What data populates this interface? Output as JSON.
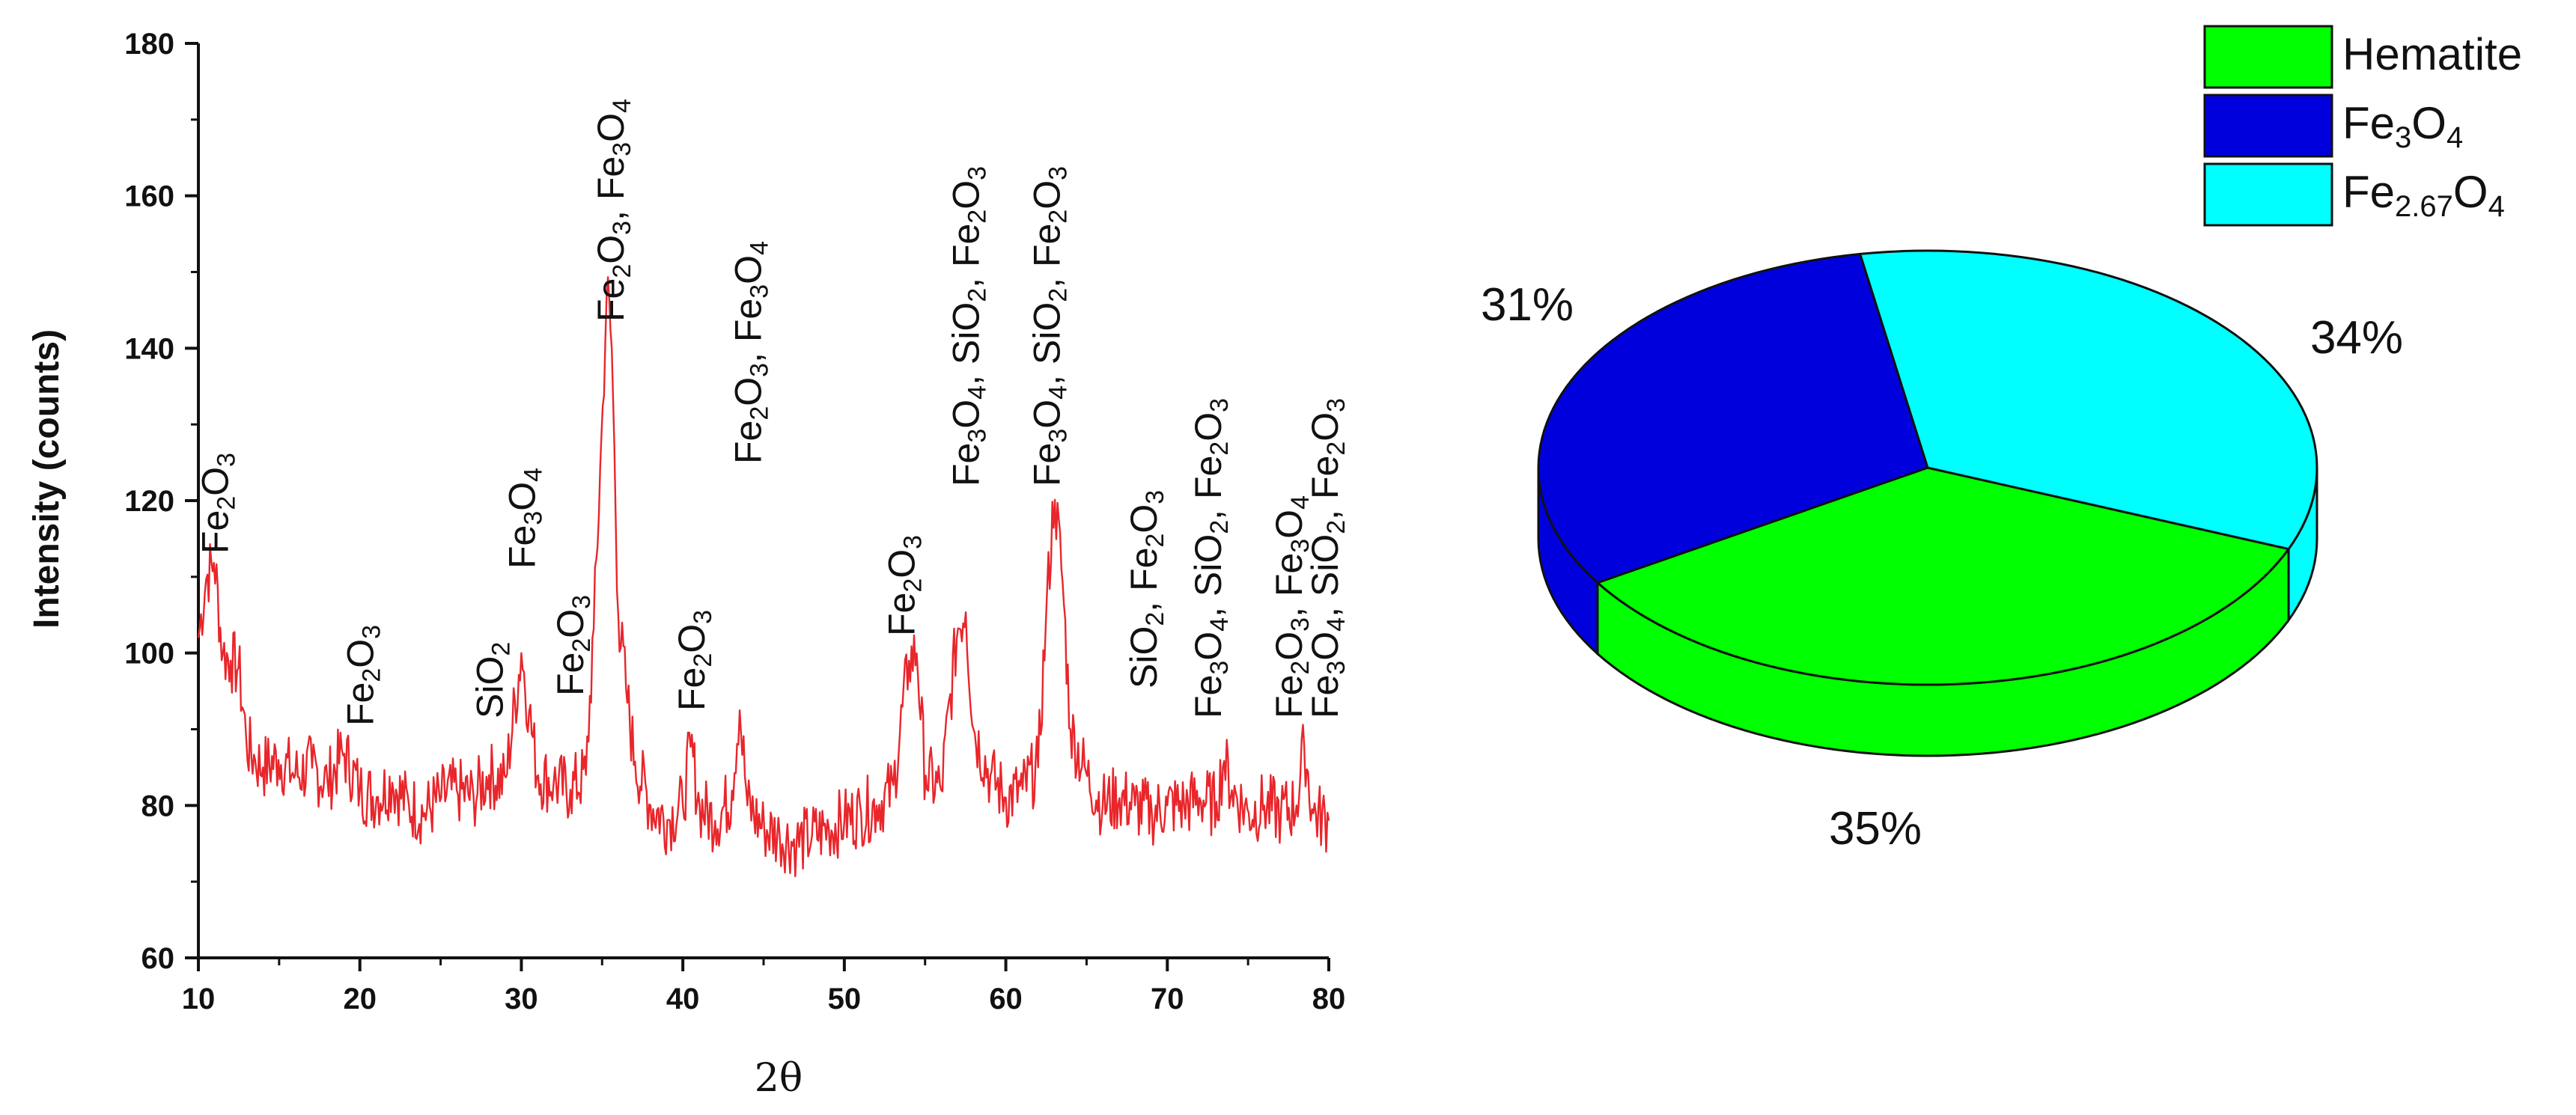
{
  "chart_data": [
    {
      "type": "line",
      "xlabel": "2θ",
      "ylabel": "Intensity (counts)",
      "xlim": [
        10,
        80
      ],
      "ylim": [
        60,
        180
      ],
      "x_ticks": [
        "10",
        "20",
        "30",
        "40",
        "50",
        "60",
        "70",
        "80"
      ],
      "y_ticks": [
        "60",
        "80",
        "100",
        "120",
        "140",
        "160",
        "180"
      ],
      "series_color": "#e8262b",
      "series": [
        {
          "x": [
            10,
            10.5,
            11,
            11.5,
            12,
            12.5,
            13,
            13.5,
            14,
            15,
            16,
            17,
            18,
            19,
            20,
            21,
            22,
            23,
            24,
            25,
            26,
            27,
            28,
            29,
            30,
            30.5,
            31,
            32,
            33,
            34,
            34.5,
            35,
            35.3,
            35.6,
            36,
            36.5,
            37,
            38,
            39,
            40,
            40.5,
            41,
            42,
            43,
            43.5,
            44,
            45,
            46,
            47,
            48,
            49,
            50,
            51,
            52,
            53,
            54,
            54.5,
            55,
            56,
            57,
            57.5,
            58,
            59,
            60,
            61,
            62,
            62.5,
            63,
            63.5,
            64,
            65,
            66,
            67,
            68,
            69,
            70,
            71,
            72,
            73,
            73.5,
            74,
            75,
            76,
            77,
            78,
            78.5,
            79,
            80
          ],
          "y": [
            102,
            110,
            112,
            100,
            99,
            98,
            88,
            86,
            85,
            86,
            84,
            85,
            83,
            87,
            82,
            81,
            83,
            80,
            79,
            81,
            82,
            81,
            84,
            83,
            100,
            92,
            84,
            83,
            82,
            84,
            104,
            130,
            148,
            140,
            105,
            95,
            86,
            80,
            78,
            80,
            88,
            80,
            78,
            81,
            93,
            80,
            77,
            76,
            75,
            76,
            77,
            78,
            79,
            80,
            82,
            99,
            100,
            84,
            82,
            103,
            106,
            90,
            84,
            81,
            82,
            85,
            105,
            121,
            110,
            90,
            84,
            80,
            81,
            80,
            79,
            80,
            80,
            81,
            80,
            86,
            82,
            79,
            80,
            79,
            80,
            88,
            79,
            78
          ]
        }
      ],
      "annotations": [
        {
          "x": 11,
          "lines": [
            [
              "Fe",
              "2",
              "O",
              "3"
            ]
          ]
        },
        {
          "x": 20,
          "lines": [
            [
              "Fe",
              "2",
              "O",
              "3"
            ]
          ]
        },
        {
          "x": 28,
          "lines": [
            [
              "SiO",
              "2"
            ]
          ]
        },
        {
          "x": 30,
          "lines": [
            [
              "Fe",
              "3",
              "O",
              "4"
            ]
          ]
        },
        {
          "x": 33,
          "lines": [
            [
              "Fe",
              "2",
              "O",
              "3"
            ]
          ]
        },
        {
          "x": 35.5,
          "lines": [
            [
              "Fe",
              "2",
              "O",
              "3",
              ", Fe",
              "3",
              "O",
              "4"
            ]
          ]
        },
        {
          "x": 40.5,
          "lines": [
            [
              "Fe",
              "2",
              "O",
              "3"
            ]
          ]
        },
        {
          "x": 44,
          "lines": [
            [
              "Fe",
              "2",
              "O",
              "3",
              ", Fe",
              "3",
              "O",
              "4"
            ]
          ]
        },
        {
          "x": 53.5,
          "lines": [
            [
              "Fe",
              "2",
              "O",
              "3"
            ]
          ]
        },
        {
          "x": 57.5,
          "lines": [
            [
              "Fe",
              "3",
              "O",
              "4",
              ", SiO",
              "2",
              ", Fe",
              "2",
              "O",
              "3"
            ]
          ]
        },
        {
          "x": 62.5,
          "lines": [
            [
              "Fe",
              "3",
              "O",
              "4",
              ", SiO",
              "2",
              ", Fe",
              "2",
              "O",
              "3"
            ]
          ]
        },
        {
          "x": 68.5,
          "lines": [
            [
              "SiO",
              "2",
              ", Fe",
              "2",
              "O",
              "3"
            ]
          ]
        },
        {
          "x": 72.5,
          "lines": [
            [
              "Fe",
              "3",
              "O",
              "4",
              ", SiO",
              "2",
              ", Fe",
              "2",
              "O",
              "3"
            ]
          ]
        },
        {
          "x": 77.5,
          "lines": [
            [
              "Fe",
              "2",
              "O",
              "3",
              ", Fe",
              "3",
              "O",
              "4"
            ]
          ]
        },
        {
          "x": 80,
          "lines": [
            [
              "Fe",
              "3",
              "O",
              "4",
              ", SiO",
              "2",
              ", Fe",
              "2",
              "O",
              "3"
            ]
          ]
        }
      ]
    },
    {
      "type": "pie",
      "style": "3d",
      "slices": [
        {
          "label": "Hematite",
          "value": 35,
          "display": "35%",
          "color": "#00ff00"
        },
        {
          "label": "Fe3O4",
          "value": 31,
          "display": "31%",
          "color": "#0000dd"
        },
        {
          "label": "Fe2.67O4",
          "value": 34,
          "display": "34%",
          "color": "#00ffff"
        }
      ],
      "legend": [
        {
          "parts": [
            [
              "Hematite",
              ""
            ]
          ],
          "color": "#00ff00"
        },
        {
          "parts": [
            [
              "Fe",
              "3"
            ],
            [
              "O",
              "4"
            ]
          ],
          "color": "#0000dd"
        },
        {
          "parts": [
            [
              "Fe",
              "2.67"
            ],
            [
              "O",
              "4"
            ]
          ],
          "color": "#00ffff"
        }
      ],
      "legend_position": "top-right"
    }
  ]
}
